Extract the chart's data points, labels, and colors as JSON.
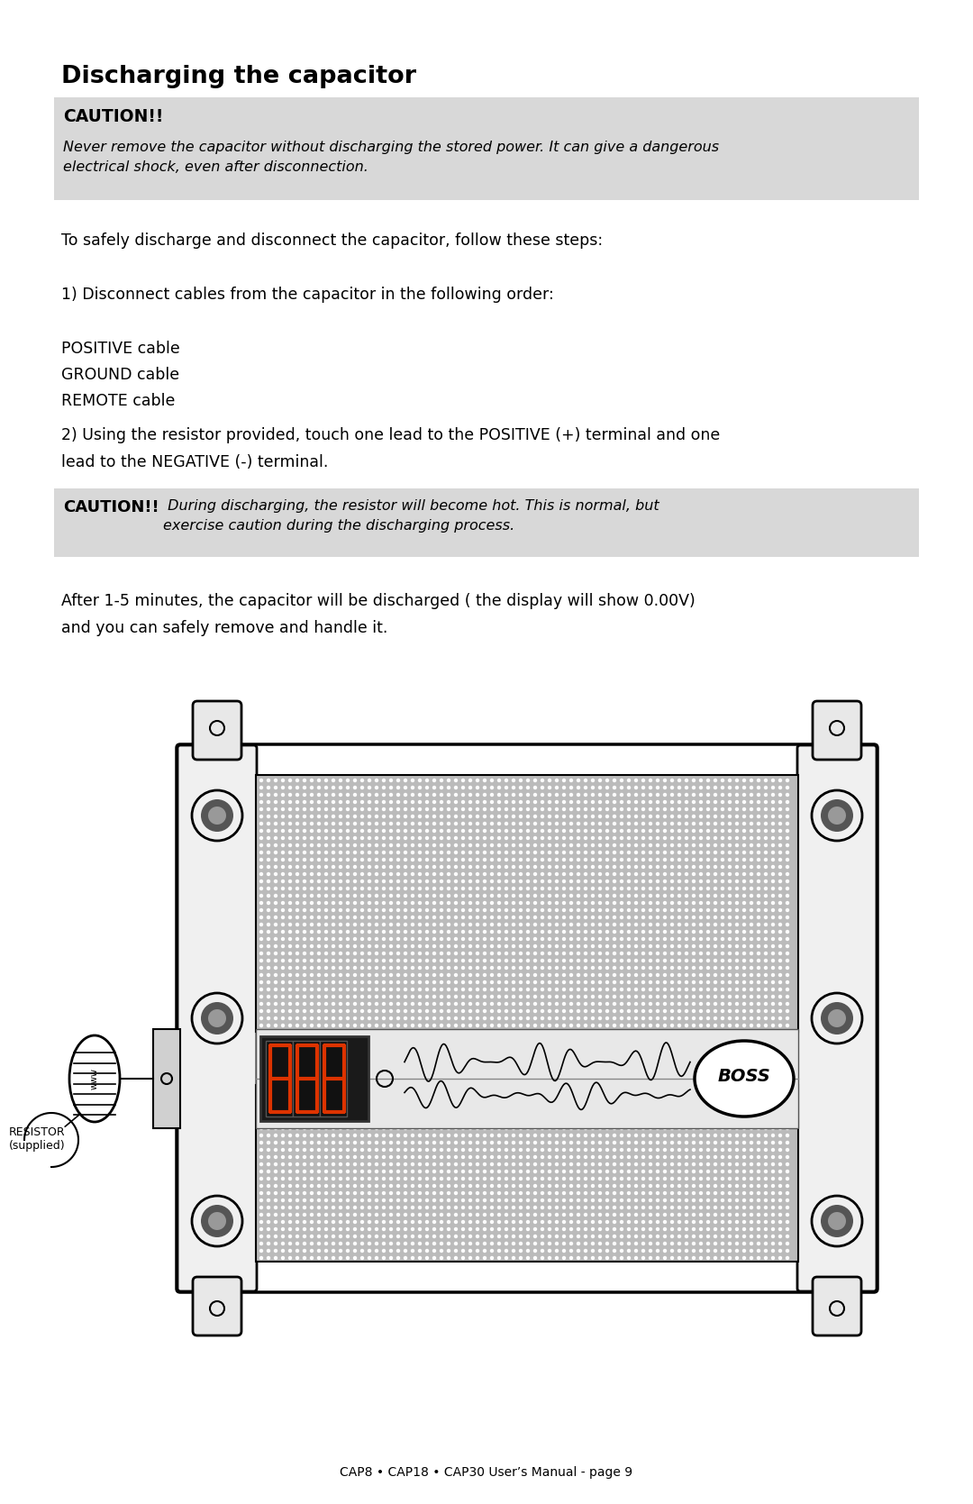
{
  "title": "Discharging the capacitor",
  "caution1_label": "CAUTION!!",
  "caution1_text": "Never remove the capacitor without discharging the stored power. It can give a dangerous\nelectrical shock, even after disconnection.",
  "para1": "To safely discharge and disconnect the capacitor, follow these steps:",
  "step1": "1) Disconnect cables from the capacitor in the following order:",
  "cables": [
    "POSITIVE cable",
    "GROUND cable",
    "REMOTE cable"
  ],
  "step2_line1": "2) Using the resistor provided, touch one lead to the POSITIVE (+) terminal and one",
  "step2_line2": "lead to the NEGATIVE (-) terminal.",
  "caution2_label": "CAUTION!!",
  "caution2_text": " During discharging, the resistor will become hot. This is normal, but\nexercise caution during the discharging process.",
  "para2_line1": "After 1-5 minutes, the capacitor will be discharged ( the display will show 0.00V)",
  "para2_line2": "and you can safely remove and handle it.",
  "footer": "CAP8 • CAP18 • CAP30 User’s Manual - page 9",
  "bg_color": "#ffffff",
  "box_color": "#d8d8d8",
  "text_color": "#000000"
}
